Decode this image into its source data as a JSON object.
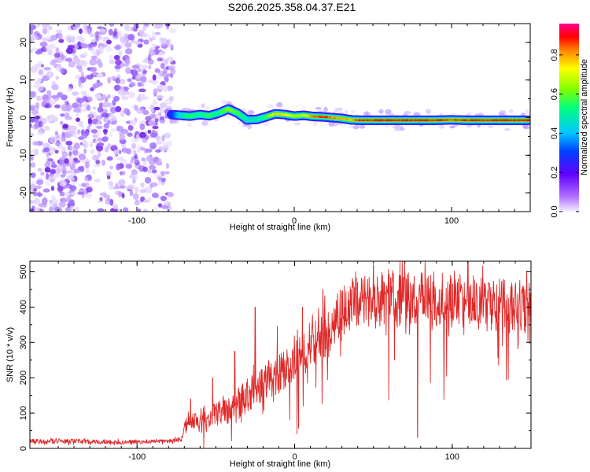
{
  "title": "S206.2025.358.04.37.E21",
  "chart_data": [
    {
      "type": "heatmap",
      "name": "spectrogram",
      "xlabel": "Height of straight line (km)",
      "ylabel": "Frequency (Hz)",
      "xlim": [
        -168,
        150
      ],
      "ylim": [
        -25,
        25
      ],
      "xticks": [
        -100,
        0,
        100
      ],
      "yticks": [
        -20,
        -10,
        0,
        10,
        20
      ],
      "noise_region_x": [
        -168,
        -78
      ],
      "signal_start_x": -78,
      "ridge": {
        "x": [
          -78,
          -72,
          -66,
          -60,
          -54,
          -48,
          -42,
          -36,
          -30,
          -24,
          -18,
          -12,
          -6,
          0,
          6,
          12,
          18,
          24,
          30,
          36,
          42,
          50,
          60,
          70,
          80,
          90,
          100,
          110,
          120,
          130,
          140,
          150
        ],
        "freq": [
          0.8,
          0.6,
          0.4,
          0.8,
          0.5,
          1.2,
          2.3,
          1.2,
          -0.6,
          -0.5,
          0.2,
          1.0,
          0.8,
          0.4,
          0.6,
          0.3,
          0.2,
          0.0,
          -0.2,
          -0.6,
          -0.7,
          -0.7,
          -0.7,
          -0.7,
          -0.7,
          -0.7,
          -0.6,
          -0.7,
          -0.7,
          -0.7,
          -0.7,
          -0.7
        ],
        "amp": [
          0.3,
          0.5,
          0.6,
          0.55,
          0.6,
          0.55,
          0.7,
          0.6,
          0.5,
          0.5,
          0.6,
          0.85,
          0.8,
          0.7,
          0.75,
          0.9,
          0.95,
          0.9,
          0.85,
          0.85,
          0.95,
          0.95,
          0.95,
          0.95,
          0.95,
          0.95,
          0.92,
          0.95,
          0.95,
          0.95,
          0.95,
          0.95
        ]
      }
    },
    {
      "type": "line",
      "name": "snr",
      "xlabel": "Height of straight line (km)",
      "ylabel": "SNR (10 * v/v)",
      "xlim": [
        -168,
        150
      ],
      "ylim": [
        0,
        530
      ],
      "xticks": [
        -100,
        0,
        100
      ],
      "yticks": [
        0,
        100,
        200,
        300,
        400,
        500
      ],
      "color": "#e02828",
      "envelope": {
        "x": [
          -168,
          -140,
          -110,
          -80,
          -72,
          -68,
          -60,
          -50,
          -40,
          -30,
          -20,
          -10,
          0,
          10,
          20,
          30,
          40,
          60,
          80,
          100,
          120,
          140,
          150
        ],
        "mean": [
          20,
          20,
          18,
          20,
          25,
          75,
          85,
          95,
          110,
          150,
          185,
          210,
          245,
          285,
          330,
          385,
          420,
          425,
          420,
          420,
          410,
          400,
          400
        ],
        "spread": [
          10,
          10,
          8,
          8,
          10,
          40,
          40,
          50,
          60,
          70,
          80,
          80,
          80,
          90,
          100,
          100,
          110,
          110,
          110,
          110,
          110,
          110,
          110
        ]
      },
      "spikes": [
        {
          "x": -66,
          "y": 140
        },
        {
          "x": -52,
          "y": 200
        },
        {
          "x": -38,
          "y": 275
        },
        {
          "x": -25,
          "y": 400
        },
        {
          "x": -11,
          "y": 345
        },
        {
          "x": 5,
          "y": 400
        },
        {
          "x": 18,
          "y": 450
        },
        {
          "x": 50,
          "y": 520
        },
        {
          "x": 78,
          "y": 30
        },
        {
          "x": 110,
          "y": 530
        }
      ]
    }
  ],
  "colorbar": {
    "label": "Normalized spectral amplitude",
    "ticks": [
      "0.0",
      "0.2",
      "0.4",
      "0.6",
      "0.8"
    ],
    "range": [
      0,
      0.96
    ],
    "colors": [
      "#f4f0ff",
      "#8000ff",
      "#0000ff",
      "#00c8ff",
      "#00ff80",
      "#80ff00",
      "#ffff00",
      "#ff8000",
      "#ff0000",
      "#ff0090"
    ]
  }
}
